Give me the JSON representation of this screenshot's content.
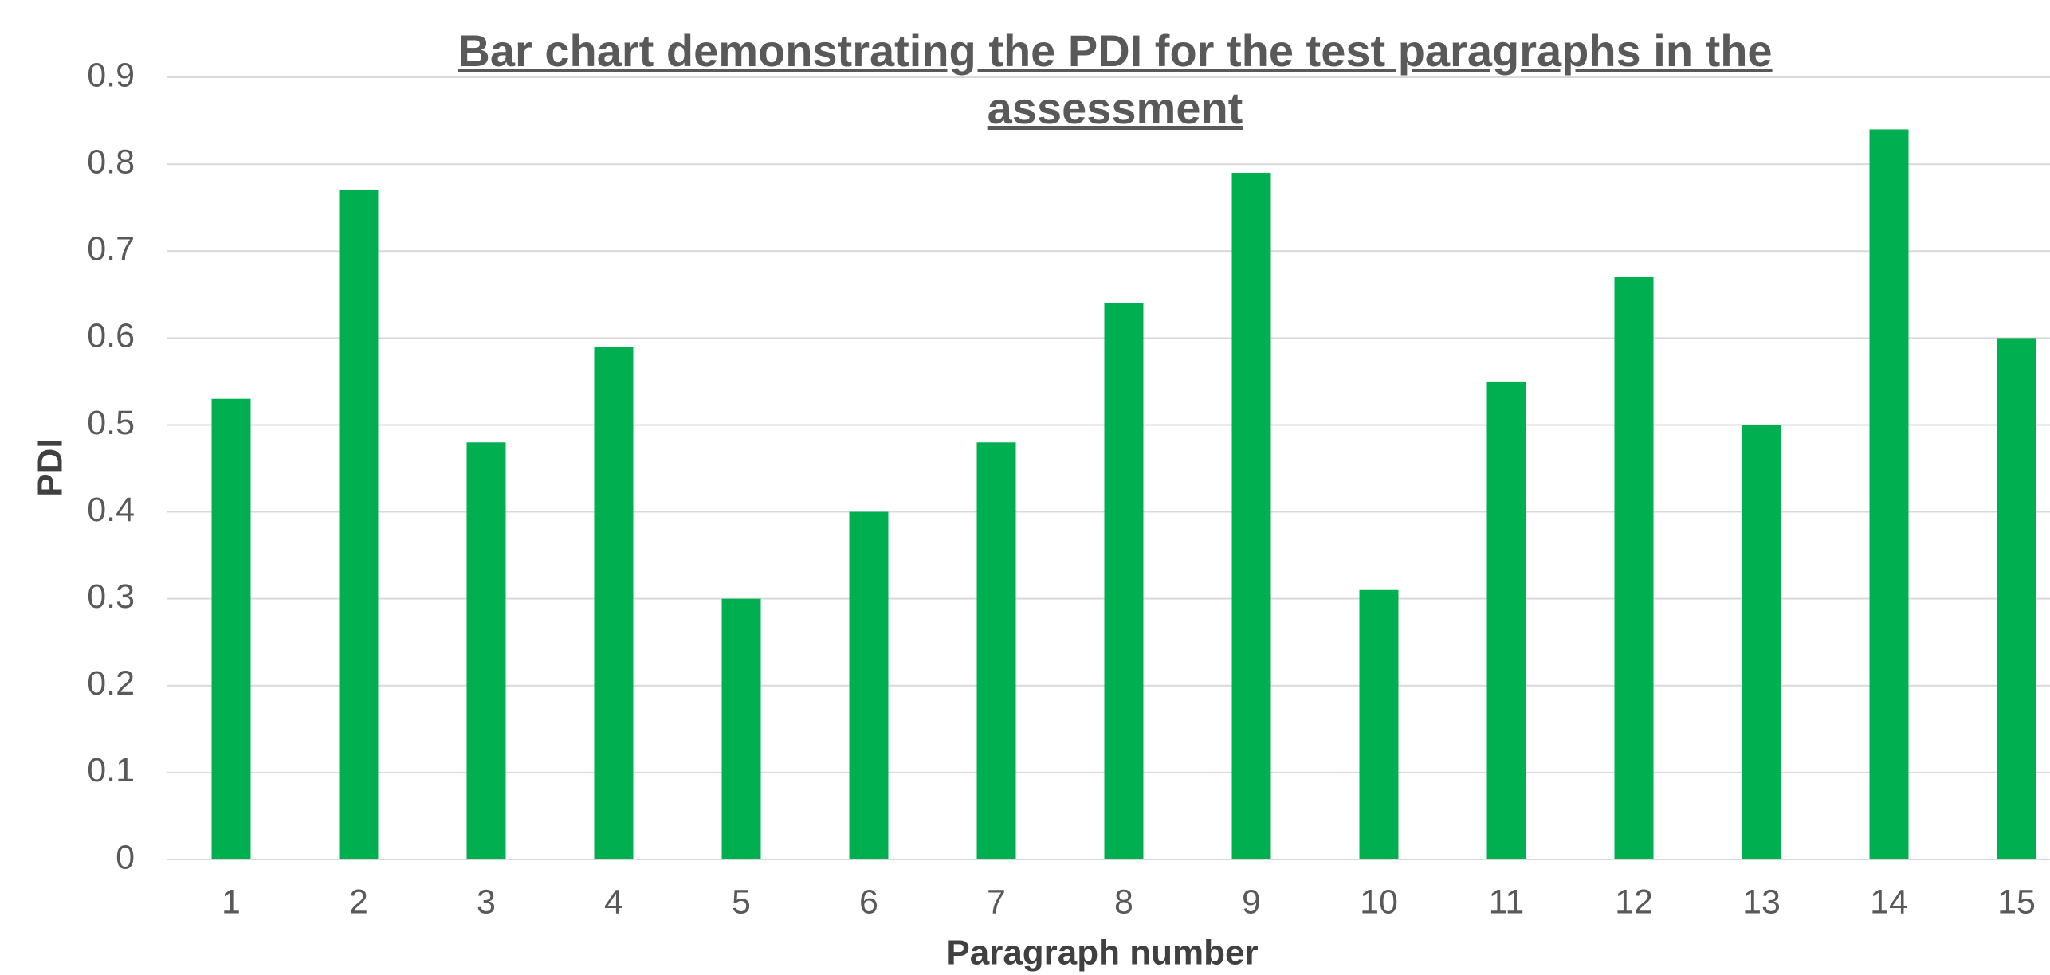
{
  "chart_data": {
    "type": "bar",
    "title": "Bar chart demonstrating the PDI for the test paragraphs in the assessment",
    "x_label": "Paragraph number",
    "y_label": "PDI",
    "categories": [
      "1",
      "2",
      "3",
      "4",
      "5",
      "6",
      "7",
      "8",
      "9",
      "10",
      "11",
      "12",
      "13",
      "14",
      "15"
    ],
    "values": [
      0.53,
      0.77,
      0.48,
      0.59,
      0.3,
      0.4,
      0.48,
      0.64,
      0.79,
      0.31,
      0.55,
      0.67,
      0.5,
      0.84,
      0.6
    ],
    "color": "#00b050",
    "ylim": [
      0,
      0.9
    ],
    "yticks": [
      0,
      0.1,
      0.2,
      0.3,
      0.4,
      0.5,
      0.6,
      0.7,
      0.8,
      0.9
    ],
    "grid": true
  }
}
